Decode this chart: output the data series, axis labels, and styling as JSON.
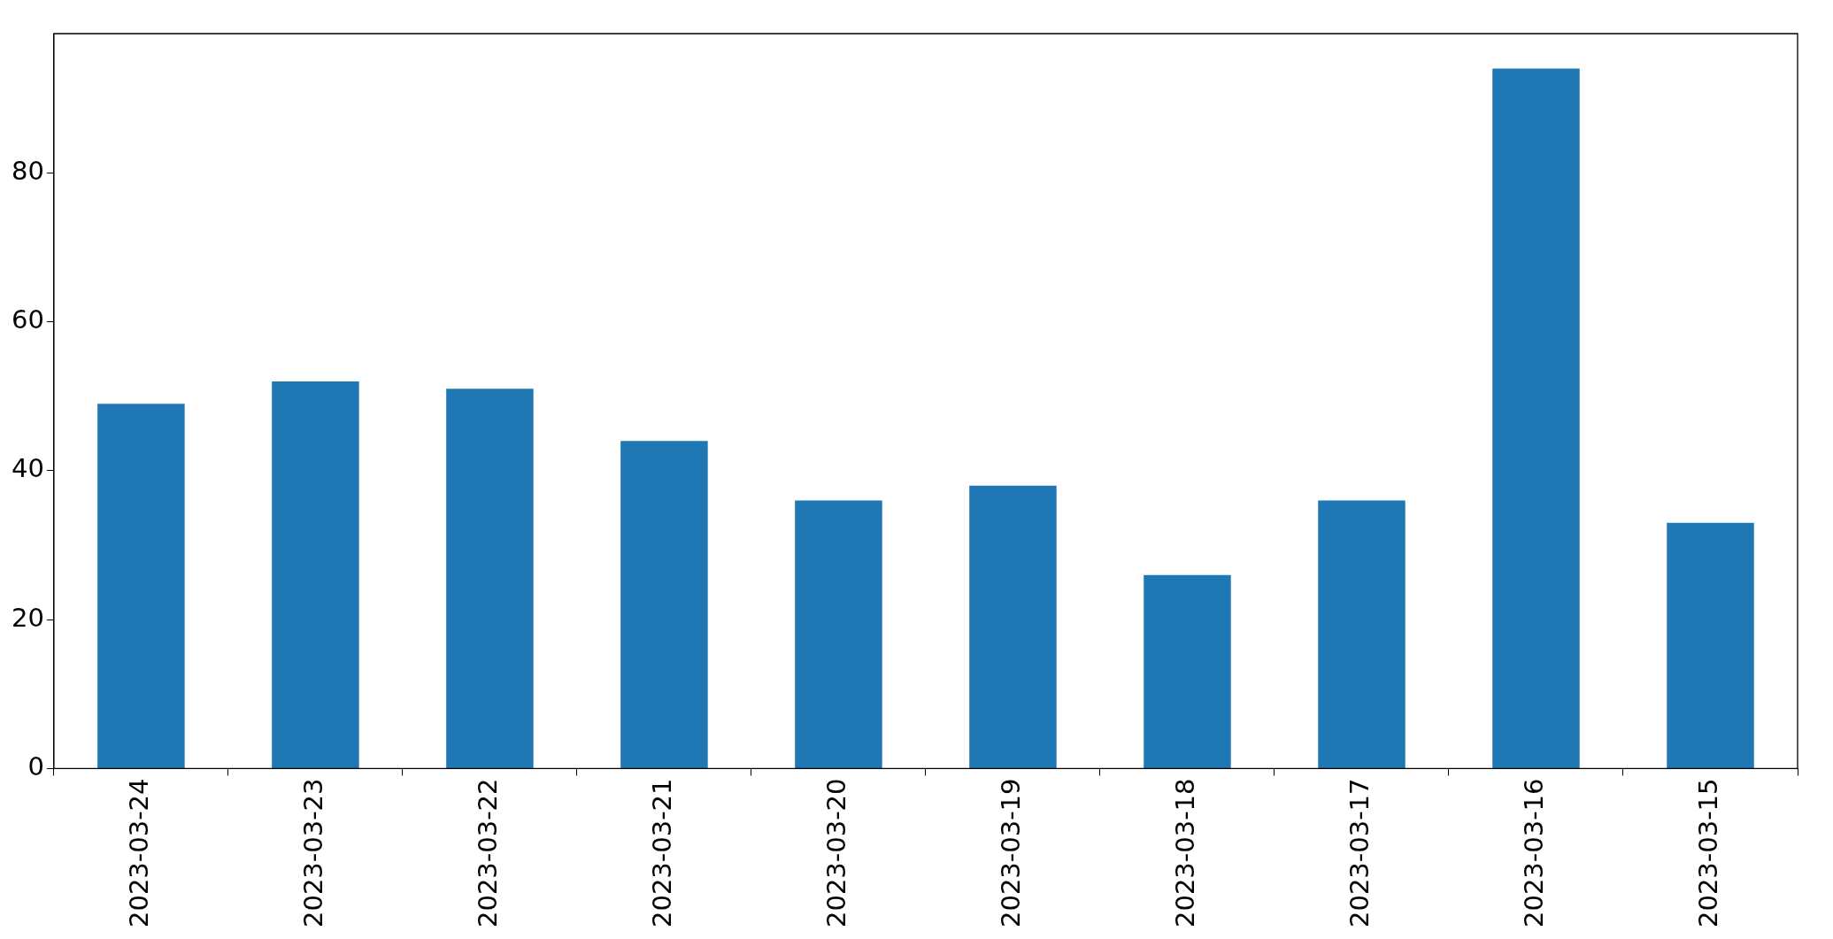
{
  "chart_data": {
    "type": "bar",
    "categories": [
      "2023-03-24",
      "2023-03-23",
      "2023-03-22",
      "2023-03-21",
      "2023-03-20",
      "2023-03-19",
      "2023-03-18",
      "2023-03-17",
      "2023-03-16",
      "2023-03-15"
    ],
    "values": [
      49,
      52,
      51,
      44,
      36,
      38,
      26,
      36,
      94,
      33
    ],
    "color": "#1f77b4",
    "ylim": [
      0,
      98.7
    ],
    "yticks": [
      0,
      20,
      40,
      60,
      80
    ],
    "grid": false,
    "legend": false
  }
}
